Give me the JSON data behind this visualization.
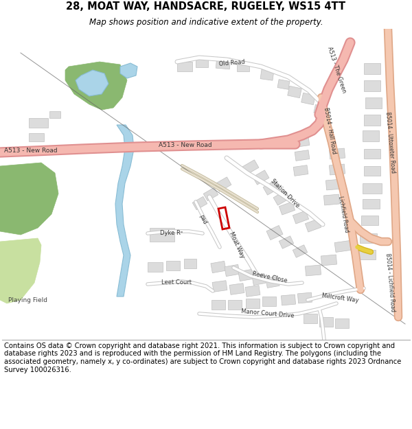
{
  "title_line1": "28, MOAT WAY, HANDSACRE, RUGELEY, WS15 4TT",
  "title_line2": "Map shows position and indicative extent of the property.",
  "footer": "Contains OS data © Crown copyright and database right 2021. This information is subject to Crown copyright and database rights 2023 and is reproduced with the permission of HM Land Registry. The polygons (including the associated geometry, namely x, y co-ordinates) are subject to Crown copyright and database rights 2023 Ordnance Survey 100026316.",
  "map_bg": "#f0efea",
  "road_a_color": "#f5b8b0",
  "road_a_outline": "#e09090",
  "road_b_color": "#f5c8b0",
  "road_b_outline": "#e0a888",
  "road_minor_color": "#ffffff",
  "road_minor_outline": "#c8c8c8",
  "road_track_color": "#e8e0d0",
  "road_track_outline": "#c0b898",
  "green_dark": "#8ab870",
  "green_light": "#c8e0a0",
  "water_color": "#aad4e8",
  "water_outline": "#88bcd4",
  "building_color": "#dcdcdc",
  "building_outline": "#c0c0c0",
  "plot_color": "#cc0000",
  "rail_color": "#666666",
  "title_fs": 10.5,
  "subtitle_fs": 8.5,
  "footer_fs": 7.2,
  "road_label_fs": 6.5,
  "small_label_fs": 5.8
}
